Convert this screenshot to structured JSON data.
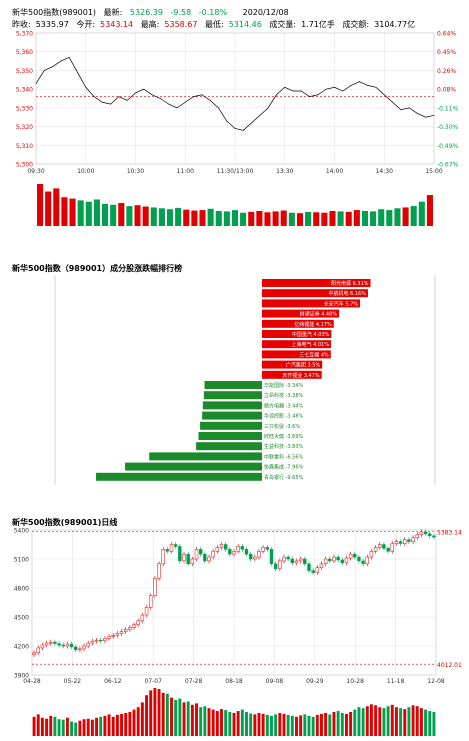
{
  "header": {
    "title": "新华500指数(989001)",
    "latest_label": "最新:",
    "latest_value": "5326.39",
    "change": "-9.58",
    "change_pct": "-0.18%",
    "date": "2020/12/08",
    "prev_close_label": "昨收:",
    "prev_close": "5335.97",
    "open_label": "今开:",
    "open": "5343.14",
    "high_label": "最高:",
    "high": "5358.67",
    "low_label": "最低:",
    "low": "5314.46",
    "volume_label": "成交量:",
    "volume": "1.71亿手",
    "amount_label": "成交额:",
    "amount": "3104.77亿"
  },
  "colors": {
    "up": "#e00000",
    "down": "#00a050",
    "line": "#000000",
    "grid": "#e4e4e4",
    "dashed": "#e00000"
  },
  "chart_data": [
    {
      "type": "line",
      "name": "intraday",
      "x_ticks": [
        "09:30",
        "10:00",
        "10:30",
        "11:00",
        "11:30/13:00",
        "13:30",
        "14:00",
        "14:30",
        "15:00"
      ],
      "y_ticks_left": [
        "5,370",
        "5,360",
        "5,350",
        "5,340",
        "5,330",
        "5,320",
        "5,310",
        "5,300"
      ],
      "y_ticks_right": [
        "0.64%",
        "0.45%",
        "0.26%",
        "0.08%",
        "-0.11%",
        "-0.30%",
        "-0.49%",
        "-0.67%"
      ],
      "ylim": [
        5300,
        5370
      ],
      "prev_close": 5335.97,
      "x_minutes": [
        0,
        5,
        10,
        15,
        20,
        25,
        30,
        35,
        40,
        45,
        50,
        55,
        60,
        65,
        70,
        75,
        80,
        85,
        90,
        95,
        100,
        105,
        110,
        115,
        120,
        125,
        130,
        135,
        140,
        145,
        150,
        155,
        160,
        165,
        170,
        175,
        180,
        185,
        190,
        195,
        200,
        205,
        210,
        215,
        220,
        225,
        230,
        235,
        240
      ],
      "values": [
        5343,
        5350,
        5352,
        5355,
        5357,
        5349,
        5341,
        5336,
        5333,
        5332,
        5336,
        5334,
        5338,
        5340,
        5337,
        5335,
        5332,
        5330,
        5333,
        5336,
        5337,
        5334,
        5330,
        5323,
        5319,
        5318,
        5322,
        5326,
        5330,
        5337,
        5341,
        5339,
        5339,
        5336,
        5337,
        5340,
        5341,
        5339,
        5342,
        5344,
        5342,
        5341,
        5337,
        5333,
        5329,
        5330,
        5327,
        5325,
        5326
      ],
      "volume": [
        95,
        78,
        85,
        65,
        62,
        58,
        55,
        60,
        50,
        48,
        52,
        45,
        47,
        44,
        42,
        40,
        38,
        41,
        37,
        35,
        36,
        39,
        34,
        33,
        36,
        30,
        32,
        34,
        31,
        33,
        35,
        30,
        29,
        32,
        31,
        30,
        34,
        33,
        32,
        36,
        34,
        33,
        38,
        36,
        40,
        42,
        45,
        55,
        70
      ]
    },
    {
      "type": "bar",
      "name": "constituent-ranking",
      "title": "新华500指数（989001）成分股涨跌幅排行榜",
      "categories": [
        "阳光电源 6.31%",
        "中航机电 6.16%",
        "长安汽车 5.7%",
        "财通证券 4.48%",
        "亿纬锂能 4.17%",
        "中国重汽 4.03%",
        "上海电气 4.01%",
        "三七互娱 4%",
        "广汽集团 3.5%",
        "天齐锂业 3.47%",
        "华能国际 -3.34%",
        "立昂科技 -3.38%",
        "赣方电器 -3.44%",
        "华远控股 -3.48%",
        "三只松鼠 -3.6%",
        "欣旺大健 -3.69%",
        "生益科技 -3.83%",
        "中联重科 -6.56%",
        "协鑫集成 -7.96%",
        "青岛银行 -9.65%"
      ],
      "values": [
        6.31,
        6.16,
        5.7,
        4.48,
        4.17,
        4.03,
        4.01,
        4.0,
        3.5,
        3.47,
        -3.34,
        -3.38,
        -3.44,
        -3.48,
        -3.6,
        -3.69,
        -3.83,
        -6.56,
        -7.96,
        -9.65
      ]
    },
    {
      "type": "candlestick",
      "name": "daily-k",
      "title": "新华500指数(989001)日线",
      "x_ticks": [
        "04-28",
        "05-22",
        "06-12",
        "07-07",
        "07-28",
        "08-18",
        "09-08",
        "09-29",
        "10-28",
        "11-18",
        "12-08"
      ],
      "y_ticks": [
        "5400",
        "5100",
        "4800",
        "4500",
        "4200",
        "3900"
      ],
      "ylim": [
        3900,
        5400
      ],
      "max_label": "5383.14",
      "min_label": "4012.01",
      "closes": [
        4130,
        4180,
        4210,
        4230,
        4240,
        4225,
        4210,
        4200,
        4220,
        4190,
        4160,
        4170,
        4200,
        4230,
        4250,
        4260,
        4255,
        4280,
        4300,
        4310,
        4330,
        4350,
        4370,
        4390,
        4420,
        4460,
        4520,
        4600,
        4720,
        4900,
        5050,
        5200,
        5180,
        5250,
        5230,
        5080,
        5150,
        5050,
        5100,
        5200,
        5150,
        5080,
        5120,
        5180,
        5220,
        5250,
        5200,
        5150,
        5180,
        5230,
        5200,
        5150,
        5100,
        5120,
        5180,
        5220,
        5200,
        5050,
        5000,
        5080,
        5120,
        5100,
        5060,
        5080,
        5100,
        5050,
        4980,
        4960,
        5010,
        5050,
        5100,
        5080,
        5120,
        5090,
        5060,
        5110,
        5150,
        5120,
        5080,
        5050,
        5120,
        5180,
        5220,
        5250,
        5210,
        5180,
        5260,
        5280,
        5260,
        5300,
        5280,
        5320,
        5350,
        5380,
        5360,
        5340,
        5326
      ],
      "volume": [
        40,
        45,
        38,
        36,
        42,
        40,
        35,
        34,
        38,
        30,
        28,
        32,
        35,
        36,
        34,
        38,
        40,
        42,
        45,
        40,
        44,
        46,
        48,
        50,
        55,
        60,
        70,
        85,
        95,
        100,
        98,
        90,
        88,
        80,
        75,
        78,
        70,
        72,
        65,
        68,
        60,
        62,
        58,
        55,
        52,
        56,
        54,
        50,
        48,
        52,
        55,
        50,
        47,
        45,
        48,
        46,
        44,
        42,
        45,
        48,
        46,
        44,
        42,
        40,
        43,
        45,
        42,
        40,
        44,
        46,
        48,
        45,
        50,
        52,
        48,
        46,
        50,
        55,
        60,
        58,
        62,
        66,
        64,
        60,
        58,
        62,
        65,
        60,
        58,
        56,
        60,
        64,
        62,
        58,
        55,
        52,
        50
      ]
    }
  ]
}
